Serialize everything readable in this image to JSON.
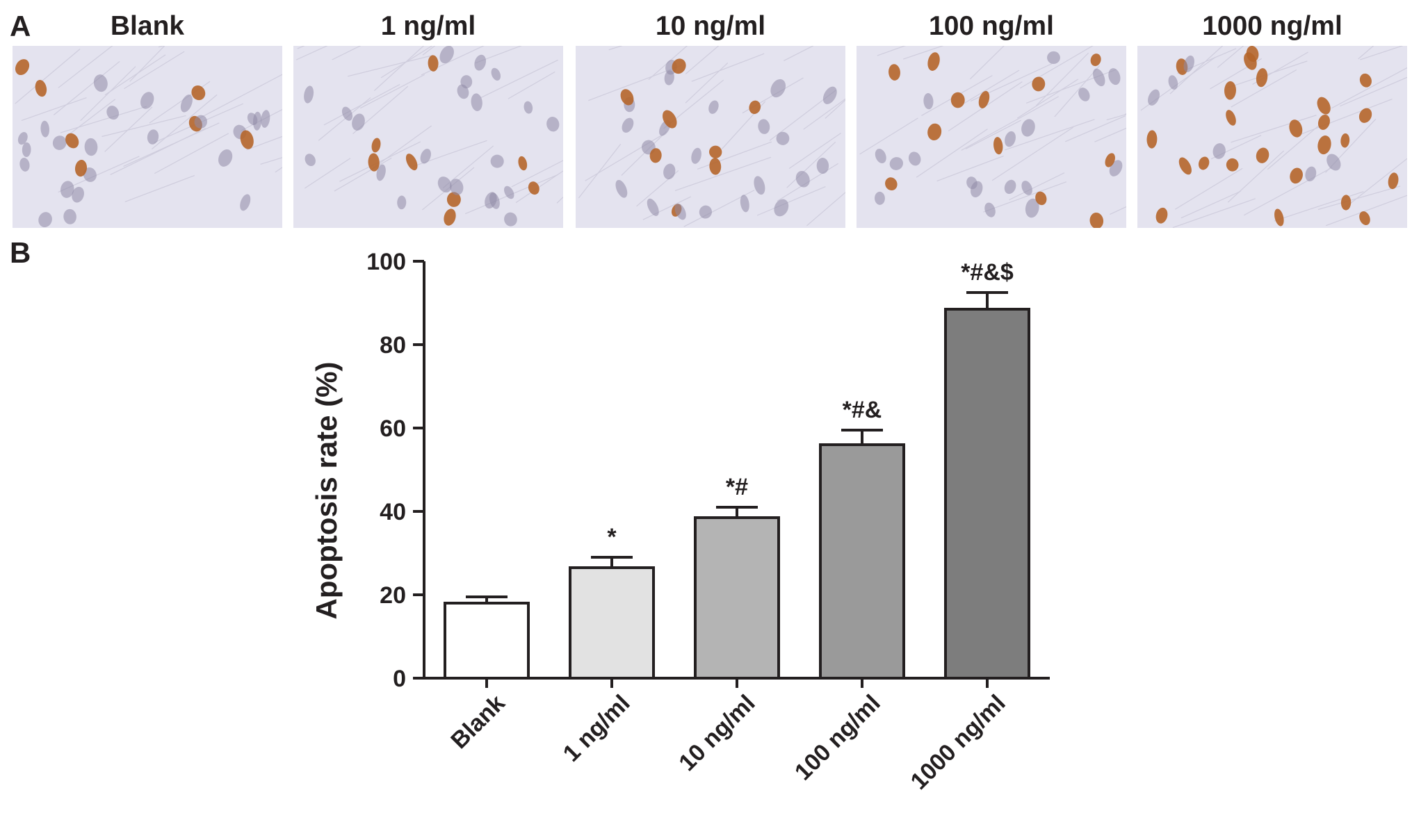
{
  "panel_a": {
    "letter": "A",
    "images": [
      {
        "label": "Blank",
        "stained_fraction": 0.18
      },
      {
        "label": "1 ng/ml",
        "stained_fraction": 0.27
      },
      {
        "label": "10 ng/ml",
        "stained_fraction": 0.39
      },
      {
        "label": "100 ng/ml",
        "stained_fraction": 0.56
      },
      {
        "label": "1000 ng/ml",
        "stained_fraction": 0.89
      }
    ]
  },
  "panel_b": {
    "letter": "B"
  },
  "colors": {
    "axis": "#231f20",
    "stain_brown": "#b5652a",
    "nucleus_gray": "#8f8aa6",
    "background_tissue": "#e4e3ef"
  },
  "chart_data": {
    "type": "bar",
    "categories": [
      "Blank",
      "1 ng/ml",
      "10 ng/ml",
      "100 ng/ml",
      "1000 ng/ml"
    ],
    "values": [
      18,
      26.5,
      38.5,
      56,
      88.5
    ],
    "errors": [
      1.5,
      2.5,
      2.5,
      3.5,
      4.0
    ],
    "significance": [
      "",
      "*",
      "*#",
      "*#&",
      "*#&$"
    ],
    "bar_colors": [
      "#ffffff",
      "#e2e2e2",
      "#b4b4b4",
      "#9a9a9a",
      "#7d7d7d"
    ],
    "xlabel": "",
    "ylabel": "Apoptosis rate (%)",
    "ylim": [
      0,
      100
    ],
    "yticks": [
      0,
      20,
      40,
      60,
      80,
      100
    ],
    "grid": false,
    "legend": "none"
  }
}
